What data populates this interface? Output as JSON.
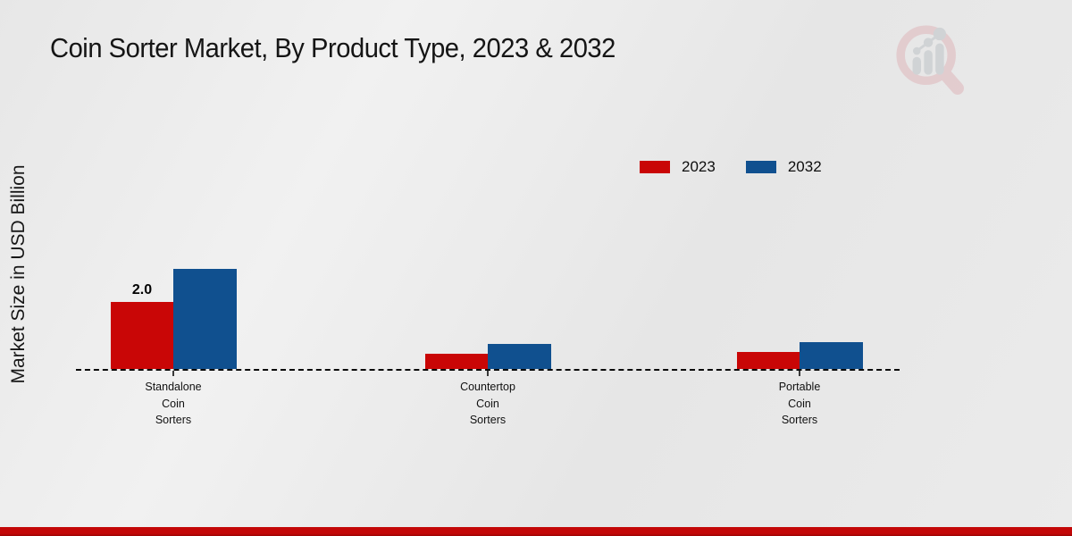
{
  "page": {
    "footer_color_top": "#c30707",
    "footer_color_bottom": "#9a0404",
    "background_color": "#e9e9e9"
  },
  "chart_data": {
    "type": "bar",
    "title": "Coin Sorter Market, By Product Type, 2023 & 2032",
    "xlabel": "",
    "ylabel": "Market Size in USD Billion",
    "categories": [
      "Standalone Coin Sorters",
      "Countertop Coin Sorters",
      "Portable Coin Sorters"
    ],
    "series": [
      {
        "name": "2023",
        "color": "#c90606",
        "values": [
          2.0,
          0.45,
          0.5
        ]
      },
      {
        "name": "2032",
        "color": "#10508f",
        "values": [
          3.0,
          0.75,
          0.8
        ]
      }
    ],
    "data_labels": [
      {
        "series": "2023",
        "category": "Standalone Coin Sorters",
        "text": "2.0"
      }
    ],
    "legend_position": "top-right",
    "grid": false,
    "baseline_style": "dashed",
    "y_axis_ticks_visible": false
  }
}
